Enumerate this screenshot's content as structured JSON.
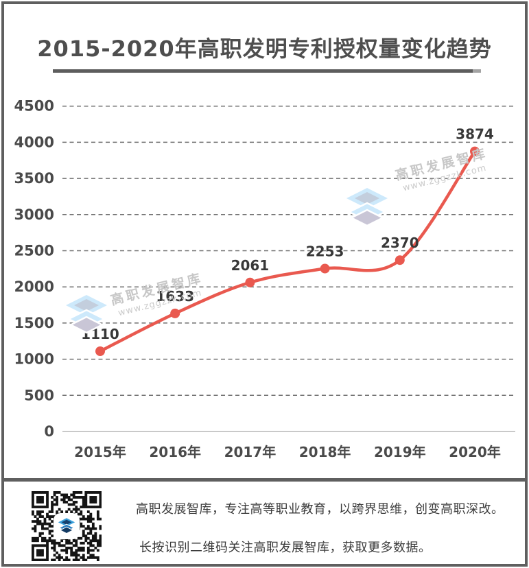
{
  "header": {
    "title": "2015-2020年高职发明专利授权量变化趋势"
  },
  "chart_data": {
    "type": "line",
    "title": "2015-2020年高职发明专利授权量变化趋势",
    "categories": [
      "2015年",
      "2016年",
      "2017年",
      "2018年",
      "2019年",
      "2020年"
    ],
    "values": [
      1110,
      1633,
      2061,
      2253,
      2370,
      3874
    ],
    "ylim": [
      0,
      4500
    ],
    "ytick_step": 500,
    "ytick_labels": [
      "0",
      "500",
      "1000",
      "1500",
      "2000",
      "2500",
      "3000",
      "3500",
      "4000",
      "4500"
    ],
    "grid": "horizontal dashed, solid light line at 0, no legend",
    "line_color": "#e9594f",
    "point_color": "#e9594f",
    "gridline_color": "#6f6f6f",
    "zero_line_color": "#c9c9c9",
    "data_labels": [
      "1110",
      "1633",
      "2061",
      "2253",
      "2370",
      "3874"
    ]
  },
  "watermark": {
    "brand": "高职发展智库",
    "url": "www.zggzzk.com",
    "logo_icon": "layered-stack-icon",
    "colors": {
      "light_blue": "#cde9fb",
      "gray_blue": "#c3cedd",
      "lavender": "#c9c6d6"
    }
  },
  "footer": {
    "line1": "高职发展智库，专注高等职业教育，以跨界思维，创变高职深改。",
    "line2": "长按识别二维码关注高职发展智库，获取更多数据。",
    "qr_icon": "qr-code",
    "qr_center_icon": "layered-stack-icon-blue"
  }
}
